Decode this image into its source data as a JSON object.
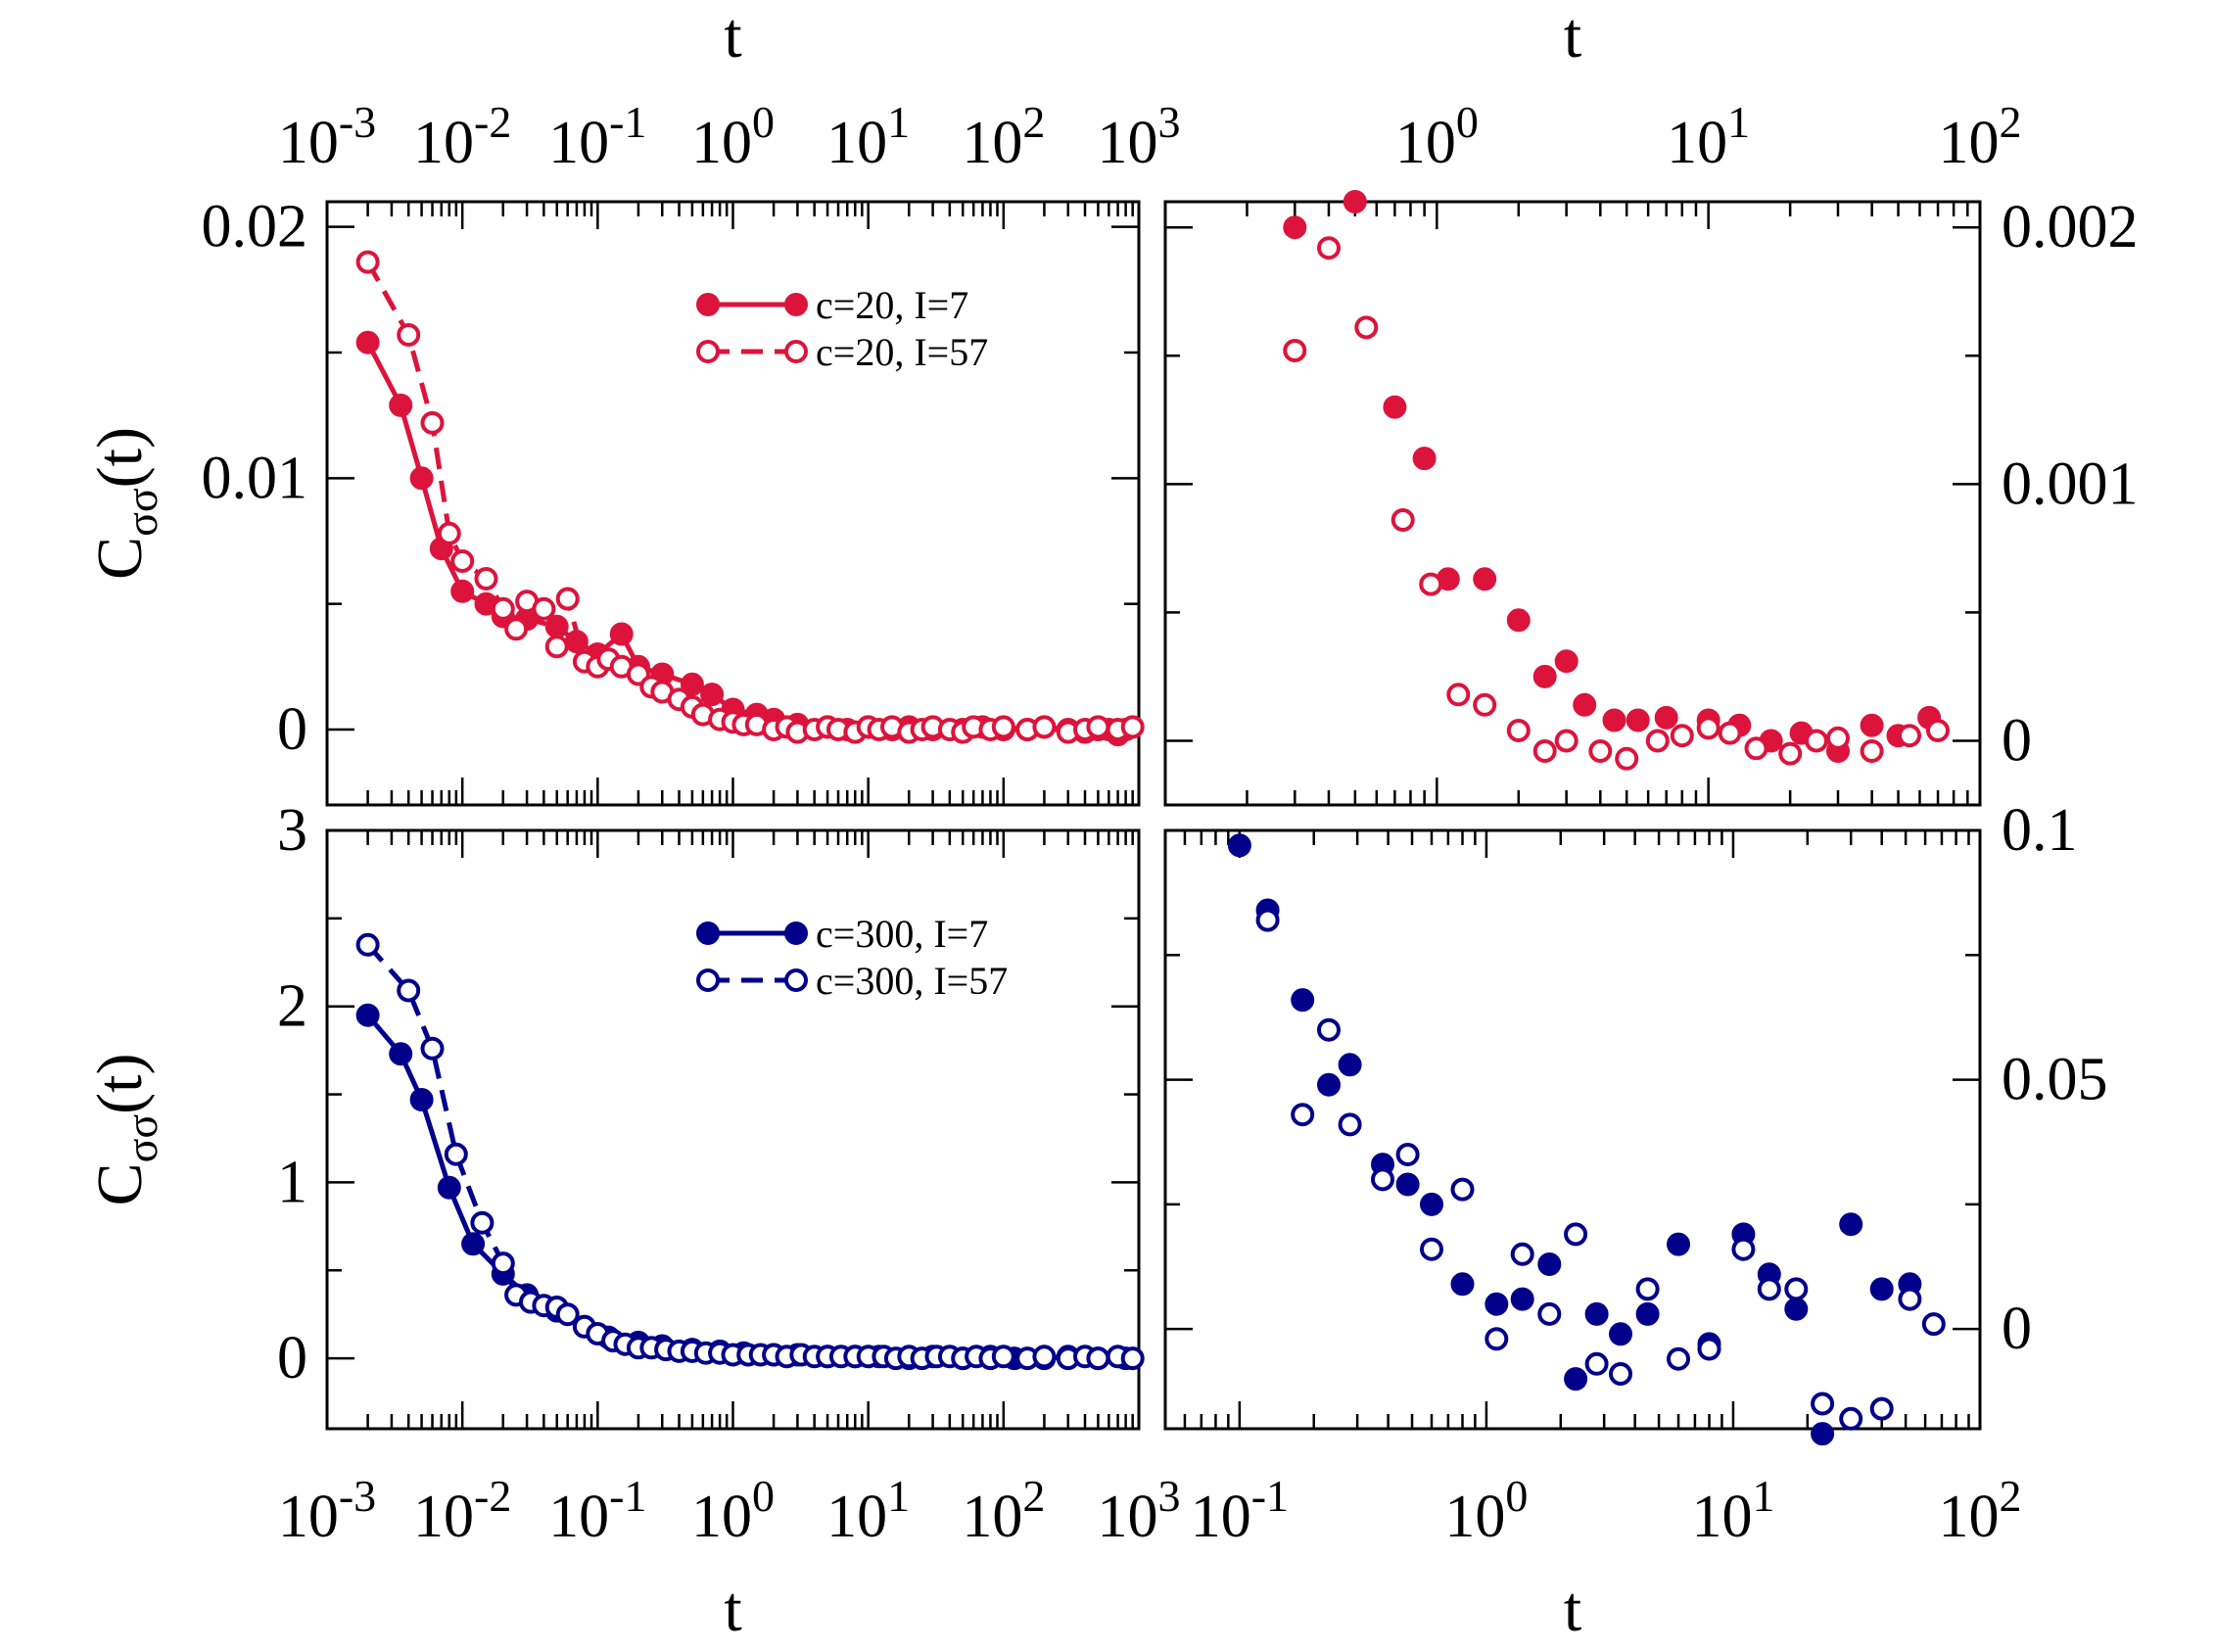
{
  "figure": {
    "ylabel_main": "C",
    "ylabel_sub": "σσ",
    "ylabel_tail": "(t)",
    "colors": {
      "red": "#dc143c",
      "blue": "#00008b",
      "axes": "#000000"
    }
  },
  "chart_data": [
    {
      "id": "top-left",
      "type": "line",
      "xscale": "log",
      "xlim": [
        0.001,
        1000
      ],
      "ylim": [
        -0.003,
        0.021
      ],
      "xlabel": "t",
      "xlabel_position": "top",
      "ylabel": "Cσσ(t)",
      "x_ticks": [
        {
          "value": 0.001,
          "base": "10",
          "exp": "-3"
        },
        {
          "value": 0.01,
          "base": "10",
          "exp": "-2"
        },
        {
          "value": 0.1,
          "base": "10",
          "exp": "-1"
        },
        {
          "value": 1,
          "base": "10",
          "exp": "0"
        },
        {
          "value": 10,
          "base": "10",
          "exp": "1"
        },
        {
          "value": 100,
          "base": "10",
          "exp": "2"
        },
        {
          "value": 1000,
          "base": "10",
          "exp": "3"
        }
      ],
      "y_ticks": [
        {
          "value": 0,
          "label": "0"
        },
        {
          "value": 0.01,
          "label": "0.01"
        },
        {
          "value": 0.02,
          "label": "0.02"
        }
      ],
      "legend_position": "top-right",
      "series": [
        {
          "name": "c=20, I=7",
          "color": "#dc143c",
          "filled": true,
          "line": "solid",
          "x": [
            0.002,
            0.0035,
            0.005,
            0.007,
            0.01,
            0.015,
            0.02,
            0.03,
            0.05,
            0.07,
            0.1,
            0.15,
            0.2,
            0.3,
            0.5,
            0.7,
            1,
            1.5,
            2,
            3,
            5,
            7,
            10,
            15,
            20,
            30,
            50,
            70,
            100,
            150,
            200,
            300,
            400,
            500,
            600,
            700,
            800
          ],
          "y": [
            0.0154,
            0.0129,
            0.01,
            0.0072,
            0.0055,
            0.005,
            0.0045,
            0.0044,
            0.0041,
            0.0035,
            0.003,
            0.0038,
            0.0025,
            0.0022,
            0.0018,
            0.0014,
            0.0008,
            0.0006,
            0.0004,
            0.0002,
            0.0001,
            0.0,
            0.0001,
            0.0,
            0.0001,
            0.0,
            0.0,
            0.0001,
            0.0,
            0.0,
            0.0001,
            0.0,
            -0.0001,
            0.0,
            0.0,
            -0.0002,
            0.0
          ]
        },
        {
          "name": "c=20, I=57",
          "color": "#dc143c",
          "filled": false,
          "line": "dashed",
          "x": [
            0.002,
            0.004,
            0.006,
            0.008,
            0.01,
            0.015,
            0.02,
            0.025,
            0.03,
            0.04,
            0.05,
            0.06,
            0.08,
            0.1,
            0.12,
            0.15,
            0.2,
            0.25,
            0.3,
            0.4,
            0.5,
            0.6,
            0.8,
            1,
            1.2,
            1.5,
            2,
            2.5,
            3,
            4,
            5,
            6,
            8,
            10,
            12,
            15,
            20,
            25,
            30,
            40,
            50,
            60,
            80,
            100,
            150,
            200,
            300,
            400,
            500,
            700,
            900
          ],
          "y": [
            0.0186,
            0.0157,
            0.0122,
            0.0078,
            0.0067,
            0.006,
            0.0048,
            0.004,
            0.0051,
            0.0048,
            0.0033,
            0.0052,
            0.0027,
            0.0025,
            0.0028,
            0.0025,
            0.0022,
            0.0017,
            0.0015,
            0.0012,
            0.0009,
            0.0006,
            0.0004,
            0.0003,
            0.0002,
            0.0002,
            0.0,
            0.0001,
            -0.0001,
            0.0,
            0.0001,
            0.0,
            -0.0001,
            0.0001,
            0.0,
            0.0001,
            -0.0001,
            0.0,
            0.0001,
            0.0,
            -0.0001,
            0.0001,
            0.0,
            0.0001,
            0.0,
            0.0001,
            -0.0001,
            0.0,
            0.0001,
            0.0,
            0.0001
          ]
        }
      ]
    },
    {
      "id": "top-right",
      "type": "scatter",
      "xscale": "log",
      "xlim": [
        0.1,
        100
      ],
      "ylim": [
        -0.00025,
        0.0021
      ],
      "xlabel": "t",
      "xlabel_position": "top",
      "x_ticks": [
        {
          "value": 1,
          "base": "10",
          "exp": "0"
        },
        {
          "value": 10,
          "base": "10",
          "exp": "1"
        },
        {
          "value": 100,
          "base": "10",
          "exp": "2"
        }
      ],
      "y_ticks": [
        {
          "value": 0,
          "label": "0"
        },
        {
          "value": 0.001,
          "label": "0.001"
        },
        {
          "value": 0.002,
          "label": "0.002"
        }
      ],
      "y_tick_side": "right",
      "series": [
        {
          "name": "c=20, I=7",
          "color": "#dc143c",
          "filled": true,
          "x": [
            0.3,
            0.5,
            0.7,
            0.9,
            1.1,
            1.5,
            2,
            2.5,
            3,
            3.5,
            4.5,
            5.5,
            7,
            10,
            13,
            17,
            22,
            30,
            40,
            50,
            65
          ],
          "y": [
            0.002,
            0.0021,
            0.0013,
            0.0011,
            0.00063,
            0.00063,
            0.00047,
            0.00025,
            0.00031,
            0.00014,
            8e-05,
            8e-05,
            9e-05,
            8e-05,
            6e-05,
            0.0,
            3e-05,
            -4e-05,
            6e-05,
            2e-05,
            9e-05
          ]
        },
        {
          "name": "c=20, I=57",
          "color": "#dc143c",
          "filled": false,
          "x": [
            0.3,
            0.4,
            0.55,
            0.75,
            0.95,
            1.2,
            1.5,
            2,
            2.5,
            3,
            4,
            5,
            6.5,
            8,
            10,
            12,
            15,
            20,
            25,
            30,
            40,
            55,
            70
          ],
          "y": [
            0.00152,
            0.00192,
            0.00161,
            0.00086,
            0.00061,
            0.00018,
            0.00014,
            4e-05,
            -4e-05,
            0.0,
            -4e-05,
            -7e-05,
            0.0,
            2e-05,
            5e-05,
            3e-05,
            -3e-05,
            -5e-05,
            0.0,
            1e-05,
            -4e-05,
            2e-05,
            4e-05
          ]
        }
      ]
    },
    {
      "id": "bottom-left",
      "type": "line",
      "xscale": "log",
      "xlim": [
        0.001,
        1000
      ],
      "ylim": [
        -0.4,
        3.0
      ],
      "xlabel": "t",
      "ylabel": "Cσσ(t)",
      "x_ticks": [
        {
          "value": 0.001,
          "base": "10",
          "exp": "-3"
        },
        {
          "value": 0.01,
          "base": "10",
          "exp": "-2"
        },
        {
          "value": 0.1,
          "base": "10",
          "exp": "-1"
        },
        {
          "value": 1,
          "base": "10",
          "exp": "0"
        },
        {
          "value": 10,
          "base": "10",
          "exp": "1"
        },
        {
          "value": 100,
          "base": "10",
          "exp": "2"
        },
        {
          "value": 1000,
          "base": "10",
          "exp": "3"
        }
      ],
      "y_ticks": [
        {
          "value": 0,
          "label": "0"
        },
        {
          "value": 1,
          "label": "1"
        },
        {
          "value": 2,
          "label": "2"
        },
        {
          "value": 3,
          "label": "3"
        }
      ],
      "legend_position": "top-right",
      "series": [
        {
          "name": "c=300, I=7",
          "color": "#00008b",
          "filled": true,
          "line": "solid",
          "x": [
            0.002,
            0.0035,
            0.005,
            0.008,
            0.012,
            0.02,
            0.03,
            0.05,
            0.08,
            0.12,
            0.2,
            0.3,
            0.5,
            0.8,
            1.2,
            2,
            3,
            5,
            8,
            12,
            20,
            30,
            50,
            80,
            120,
            200,
            300,
            500,
            800
          ],
          "y": [
            1.95,
            1.73,
            1.47,
            0.97,
            0.65,
            0.48,
            0.36,
            0.27,
            0.18,
            0.12,
            0.09,
            0.07,
            0.05,
            0.04,
            0.03,
            0.02,
            0.02,
            0.01,
            0.01,
            0.01,
            0.0,
            0.01,
            0.0,
            0.01,
            0.0,
            0.0,
            0.01,
            0.0,
            0.0
          ]
        },
        {
          "name": "c=300, I=57",
          "color": "#00008b",
          "filled": false,
          "line": "dashed",
          "x": [
            0.002,
            0.004,
            0.006,
            0.009,
            0.014,
            0.02,
            0.025,
            0.032,
            0.04,
            0.05,
            0.06,
            0.08,
            0.1,
            0.13,
            0.16,
            0.2,
            0.25,
            0.32,
            0.4,
            0.5,
            0.63,
            0.8,
            1,
            1.3,
            1.6,
            2,
            2.5,
            3.2,
            4,
            5,
            6.3,
            8,
            10,
            13,
            16,
            20,
            25,
            32,
            40,
            50,
            63,
            80,
            100,
            150,
            200,
            300,
            400,
            500,
            700,
            900
          ],
          "y": [
            2.35,
            2.09,
            1.76,
            1.16,
            0.77,
            0.54,
            0.36,
            0.32,
            0.3,
            0.29,
            0.25,
            0.18,
            0.14,
            0.1,
            0.08,
            0.06,
            0.06,
            0.05,
            0.04,
            0.04,
            0.03,
            0.03,
            0.02,
            0.02,
            0.02,
            0.02,
            0.01,
            0.02,
            0.01,
            0.01,
            0.01,
            0.01,
            0.01,
            0.01,
            0.0,
            0.01,
            0.0,
            0.01,
            0.01,
            0.0,
            0.01,
            0.0,
            0.01,
            0.0,
            0.01,
            0.0,
            0.01,
            0.0,
            0.01,
            0.0
          ]
        }
      ]
    },
    {
      "id": "bottom-right",
      "type": "scatter",
      "xscale": "log",
      "xlim": [
        0.05,
        100
      ],
      "ylim": [
        -0.02,
        0.1
      ],
      "xlabel": "t",
      "x_ticks": [
        {
          "value": 0.1,
          "base": "10",
          "exp": "-1"
        },
        {
          "value": 1,
          "base": "10",
          "exp": "0"
        },
        {
          "value": 10,
          "base": "10",
          "exp": "1"
        },
        {
          "value": 100,
          "base": "10",
          "exp": "2"
        }
      ],
      "y_ticks": [
        {
          "value": 0,
          "label": "0"
        },
        {
          "value": 0.05,
          "label": "0.05"
        },
        {
          "value": 0.1,
          "label": "0.1"
        }
      ],
      "y_tick_side": "right",
      "series": [
        {
          "name": "c=300, I=7",
          "color": "#00008b",
          "filled": true,
          "x": [
            0.1,
            0.13,
            0.18,
            0.23,
            0.28,
            0.38,
            0.48,
            0.6,
            0.8,
            1.1,
            1.4,
            1.8,
            2.3,
            2.8,
            3.5,
            4.5,
            6,
            8,
            11,
            14,
            18,
            23,
            30,
            40,
            52
          ],
          "y": [
            0.097,
            0.084,
            0.066,
            0.049,
            0.053,
            0.033,
            0.029,
            0.025,
            0.009,
            0.005,
            0.006,
            0.013,
            -0.01,
            0.003,
            -0.001,
            0.003,
            0.017,
            -0.003,
            0.019,
            0.011,
            0.004,
            -0.021,
            0.021,
            0.008,
            0.009
          ]
        },
        {
          "name": "c=300, I=57",
          "color": "#00008b",
          "filled": false,
          "x": [
            0.13,
            0.18,
            0.23,
            0.28,
            0.38,
            0.48,
            0.6,
            0.8,
            1.1,
            1.4,
            1.8,
            2.3,
            2.8,
            3.5,
            4.5,
            6,
            8,
            11,
            14,
            18,
            23,
            30,
            40,
            52,
            65
          ],
          "y": [
            0.082,
            0.043,
            0.06,
            0.041,
            0.03,
            0.035,
            0.016,
            0.028,
            -0.002,
            0.015,
            0.003,
            0.019,
            -0.007,
            -0.009,
            0.008,
            -0.006,
            -0.004,
            0.016,
            0.008,
            0.008,
            -0.015,
            -0.018,
            -0.016,
            0.006,
            0.001
          ]
        }
      ]
    }
  ]
}
